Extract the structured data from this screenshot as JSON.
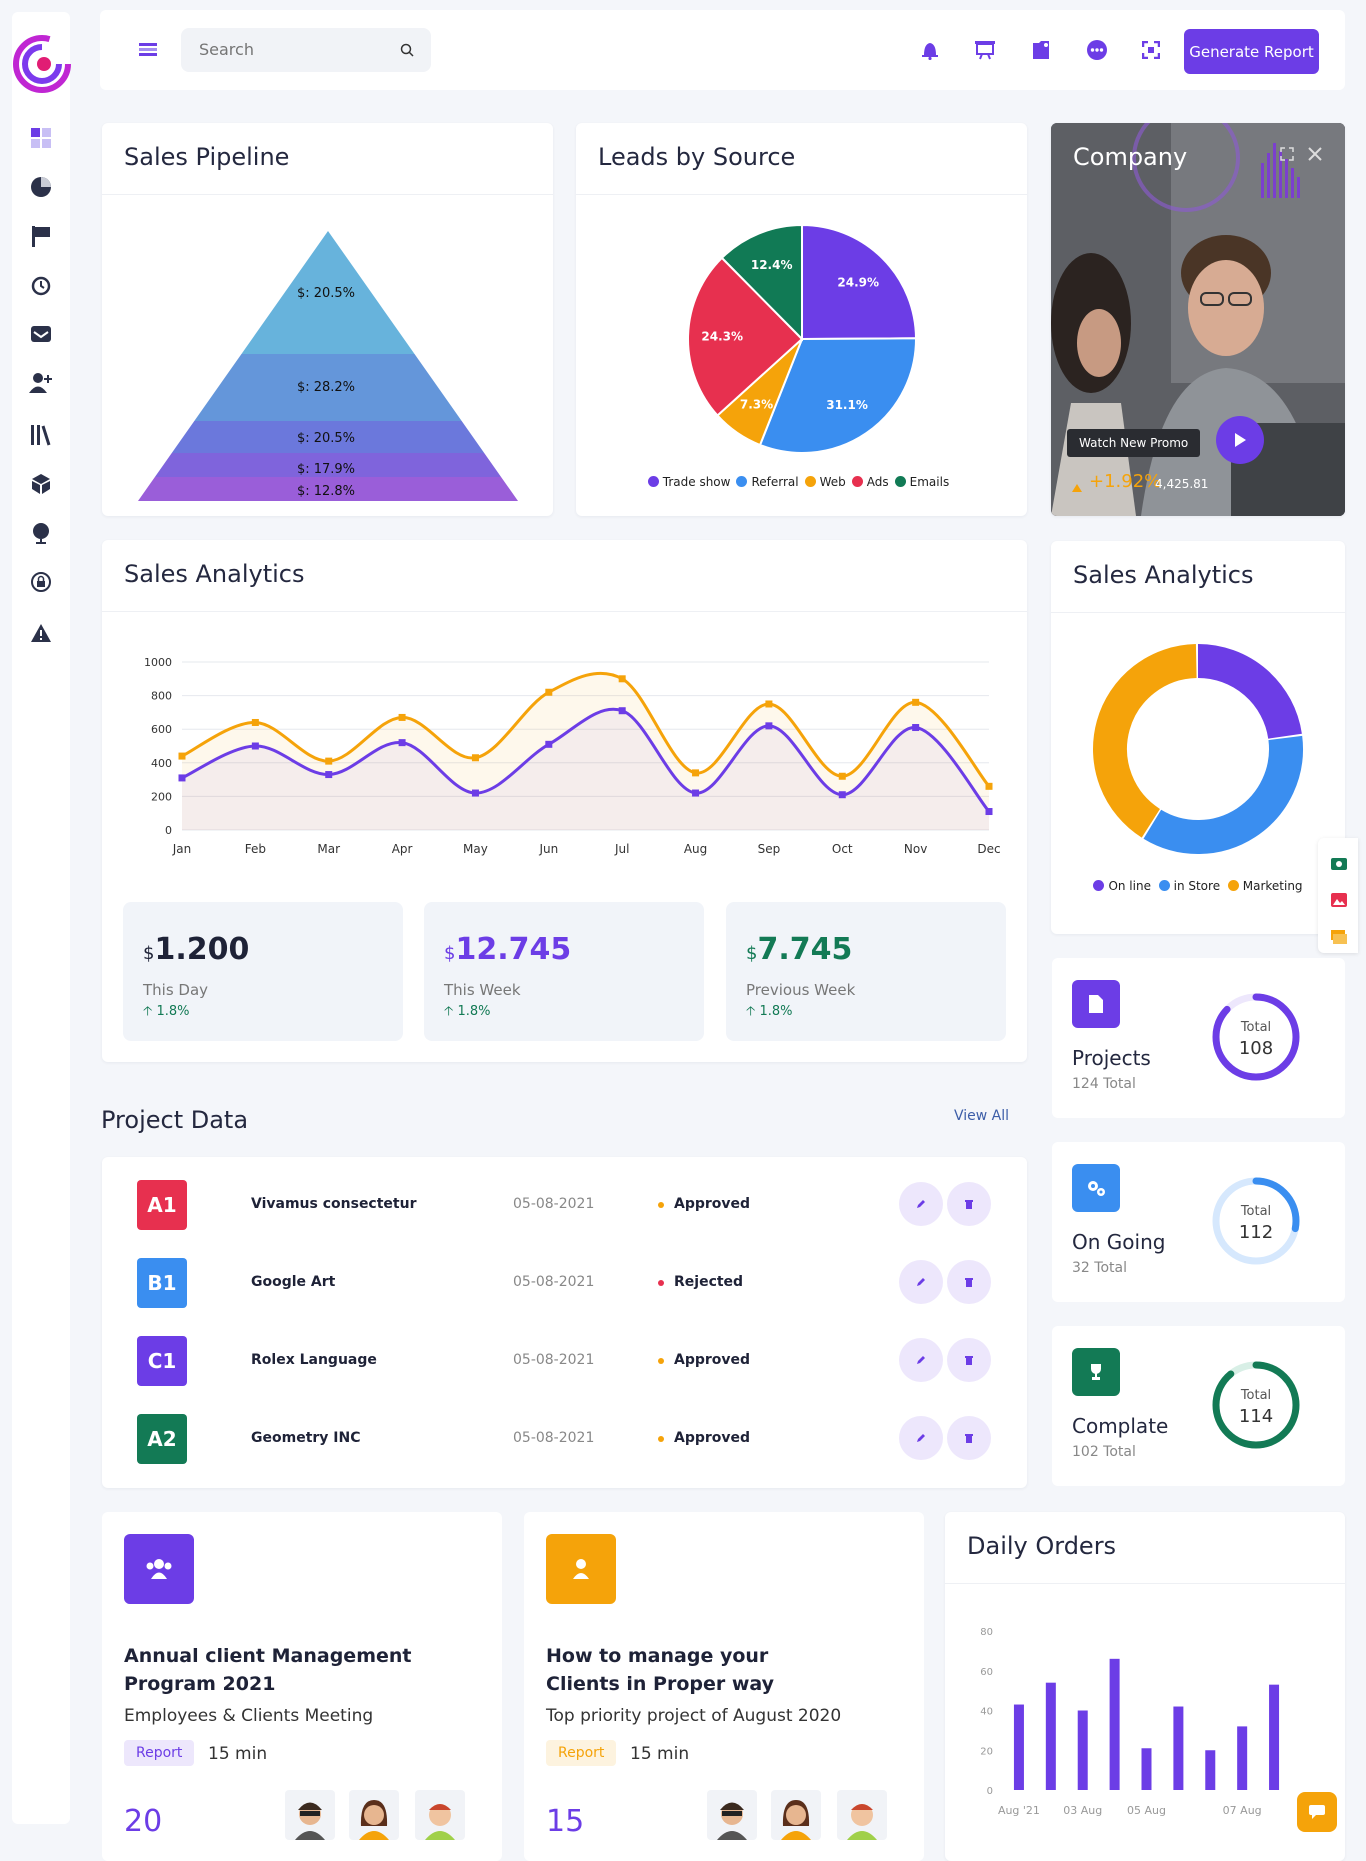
{
  "topbar": {
    "search_placeholder": "Search",
    "generate_label": "Generate Report"
  },
  "pipeline": {
    "title": "Sales Pipeline",
    "levels": [
      "$: 20.5%",
      "$: 28.2%",
      "$: 20.5%",
      "$: 17.9%",
      "$: 12.8%"
    ]
  },
  "leads": {
    "title": "Leads by Source",
    "slices": [
      {
        "name": "Trade show",
        "label": "24.9%",
        "color": "#6c3de6"
      },
      {
        "name": "Referral",
        "label": "31.1%",
        "color": "#3a8ef0"
      },
      {
        "name": "Web",
        "label": "7.3%",
        "color": "#f5a30a"
      },
      {
        "name": "Ads",
        "label": "24.3%",
        "color": "#e7304f"
      },
      {
        "name": "Emails",
        "label": "12.4%",
        "color": "#117a55"
      }
    ]
  },
  "company": {
    "title": "Company",
    "promo": "Watch New Promo",
    "change": "+1.92%",
    "value": "4,425.81"
  },
  "sales_analytics": {
    "title": "Sales Analytics",
    "stats": [
      {
        "currency": "$",
        "value": "1.200",
        "label": "This Day",
        "change": "1.8%",
        "color": "#1e2237"
      },
      {
        "currency": "$",
        "value": "12.745",
        "label": "This Week",
        "change": "1.8%",
        "color": "#6c3de6"
      },
      {
        "currency": "$",
        "value": "7.745",
        "label": "Previous Week",
        "change": "1.8%",
        "color": "#137a55"
      }
    ]
  },
  "donut": {
    "title": "Sales Analytics",
    "legend": [
      "On line",
      "in Store",
      "Marketing"
    ]
  },
  "projects_section": {
    "title": "Project Data",
    "view_all": "View All",
    "rows": [
      {
        "code": "A1",
        "name": "Vivamus consectetur",
        "date": "05-08-2021",
        "status": "Approved",
        "badge_color": "#e7304f",
        "dot_color": "#f5a30a"
      },
      {
        "code": "B1",
        "name": "Google Art",
        "date": "05-08-2021",
        "status": "Rejected",
        "badge_color": "#3a8ef0",
        "dot_color": "#e7304f"
      },
      {
        "code": "C1",
        "name": "Rolex Language",
        "date": "05-08-2021",
        "status": "Approved",
        "badge_color": "#6c3de6",
        "dot_color": "#f5a30a"
      },
      {
        "code": "A2",
        "name": "Geometry INC",
        "date": "05-08-2021",
        "status": "Approved",
        "badge_color": "#137a55",
        "dot_color": "#f5a30a"
      }
    ]
  },
  "minis": [
    {
      "title": "Projects",
      "sub": "124 Total",
      "ring_label": "Total",
      "ring_value": "108",
      "color": "#6c3de6",
      "light": "#ede7fc",
      "fraction": 0.87
    },
    {
      "title": "On Going",
      "sub": "32 Total",
      "ring_label": "Total",
      "ring_value": "112",
      "color": "#3a8ef0",
      "light": "#d6e8fd",
      "fraction": 0.28
    },
    {
      "title": "Complate",
      "sub": "102 Total",
      "ring_label": "Total",
      "ring_value": "114",
      "color": "#137a55",
      "light": "#d8efe6",
      "fraction": 0.89
    }
  ],
  "info_cards": [
    {
      "title": "Annual client Management Program 2021",
      "sub": "Employees & Clients Meeting",
      "tag": "Report",
      "duration": "15 min",
      "count": "20"
    },
    {
      "title": "How to manage your Clients in Proper way",
      "sub": "Top priority project of August 2020",
      "tag": "Report",
      "duration": "15 min",
      "count": "15"
    }
  ],
  "chart_data": [
    {
      "type": "line",
      "title": "Sales Analytics",
      "categories": [
        "Jan",
        "Feb",
        "Mar",
        "Apr",
        "May",
        "Jun",
        "Jul",
        "Aug",
        "Sep",
        "Oct",
        "Nov",
        "Dec"
      ],
      "ylim": [
        0,
        1000
      ],
      "yticks": [
        0,
        200,
        400,
        600,
        800,
        1000
      ],
      "series": [
        {
          "values": [
            440,
            640,
            410,
            670,
            430,
            820,
            900,
            340,
            750,
            320,
            760,
            260
          ],
          "color": "#f5a30a"
        },
        {
          "values": [
            310,
            500,
            330,
            520,
            220,
            510,
            710,
            220,
            620,
            210,
            610,
            110
          ],
          "color": "#6c3de6"
        }
      ]
    },
    {
      "type": "pie",
      "title": "Leads by Source",
      "categories": [
        "Trade show",
        "Referral",
        "Web",
        "Ads",
        "Emails"
      ],
      "values": [
        24.9,
        31.1,
        7.3,
        24.3,
        12.4
      ]
    },
    {
      "type": "pie",
      "title": "Sales Analytics",
      "categories": [
        "On line",
        "in Store",
        "Marketing"
      ],
      "values": [
        23,
        36,
        41
      ],
      "colors": [
        "#6c3de6",
        "#3a8ef0",
        "#f5a30a"
      ]
    },
    {
      "type": "bar",
      "title": "Daily Orders",
      "categories": [
        "Aug '21",
        "",
        "03 Aug",
        "",
        "05 Aug",
        "",
        "",
        "07 Aug",
        ""
      ],
      "xticks": [
        "Aug '21",
        "03 Aug",
        "05 Aug",
        "07 Aug"
      ],
      "values": [
        43,
        54,
        40,
        66,
        21,
        42,
        20,
        32,
        53
      ],
      "ylim": [
        0,
        80
      ],
      "yticks": [
        0,
        20,
        40,
        60,
        80
      ]
    }
  ]
}
